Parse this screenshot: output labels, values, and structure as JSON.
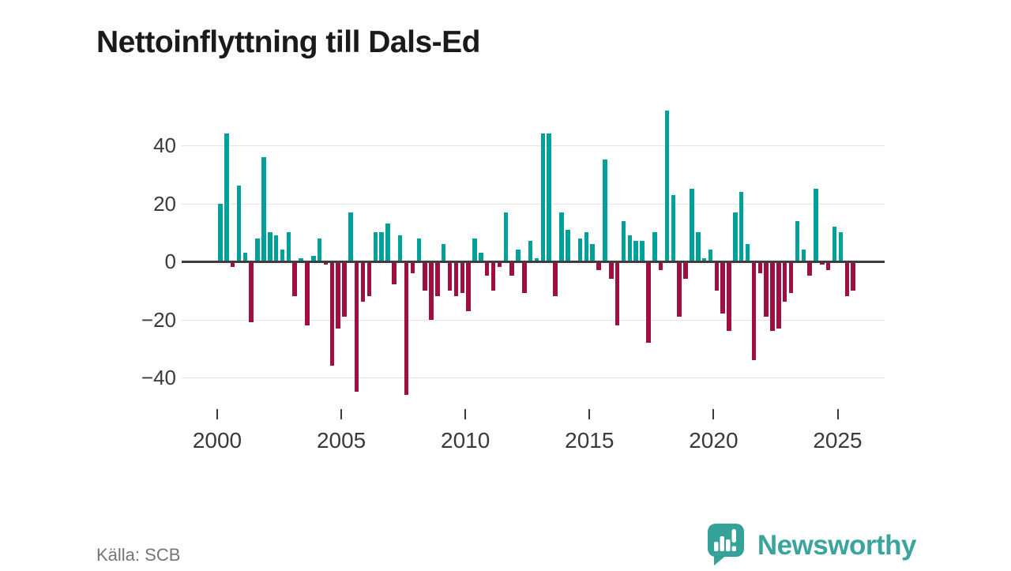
{
  "title": "Nettoinflyttning till Dals-Ed",
  "source": "Källa: SCB",
  "brand": {
    "name": "Newsworthy",
    "logo_icon": "speech-bubble-bar-chart"
  },
  "colors": {
    "positive_bar": "#00a19b",
    "negative_bar": "#a00e42",
    "gridline": "#e4e4e4",
    "zero_line": "#3d3d3d",
    "axis_text": "#3a3a3a",
    "title_text": "#1a1a1a",
    "source_text": "#757575",
    "brand_teal": "#3ba49c"
  },
  "chart_data": {
    "type": "bar",
    "title": "Nettoinflyttning till Dals-Ed",
    "frequency": "quarterly",
    "start": "2000-Q1",
    "end": "2025-Q3",
    "xlabel": "",
    "ylabel": "",
    "ylim": [
      -50,
      56
    ],
    "grid": "horizontal",
    "legend": "none",
    "y_ticks": [
      40,
      20,
      0,
      -20,
      -40
    ],
    "y_tick_labels": [
      "40",
      "20",
      "0",
      "−20",
      "−40"
    ],
    "x_ticks_years": [
      2000,
      2005,
      2010,
      2015,
      2020,
      2025
    ],
    "x_tick_labels": [
      "2000",
      "2005",
      "2010",
      "2015",
      "2020",
      "2025"
    ],
    "values": [
      20,
      44,
      -2,
      26,
      3,
      -21,
      8,
      36,
      10,
      9,
      4,
      10,
      -12,
      1,
      -22,
      2,
      8,
      -1,
      -36,
      -23,
      -19,
      17,
      -45,
      -14,
      -12,
      10,
      10,
      13,
      -8,
      9,
      -46,
      -4,
      8,
      -10,
      -20,
      -12,
      6,
      -10,
      -12,
      -11,
      -17,
      8,
      3,
      -5,
      -10,
      -2,
      17,
      -5,
      4,
      -11,
      7,
      1,
      44,
      44,
      -12,
      17,
      11,
      0,
      8,
      10,
      6,
      -3,
      35,
      -6,
      -22,
      14,
      9,
      7,
      7,
      -28,
      10,
      -3,
      52,
      23,
      -19,
      -6,
      25,
      10,
      1,
      4,
      -10,
      -18,
      -24,
      17,
      24,
      6,
      -34,
      -4,
      -19,
      -24,
      -23,
      -14,
      -11,
      14,
      4,
      -5,
      25,
      -1,
      -3,
      12,
      10,
      -12,
      -10
    ]
  }
}
